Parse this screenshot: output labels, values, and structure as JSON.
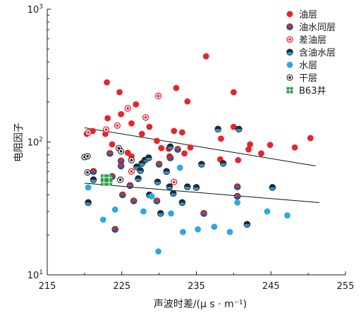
{
  "chart_data": {
    "type": "scatter",
    "xlabel": "声波时差/(μ s · m⁻¹)",
    "ylabel": "电阻因子",
    "xlim": [
      215,
      255
    ],
    "ylim": [
      10,
      1000
    ],
    "yscale": "log",
    "grid": false,
    "legend_position": "top-right",
    "xticks": [
      215,
      225,
      235,
      245,
      255
    ],
    "xtick_labels": [
      "215",
      "225",
      "235",
      "245",
      "255"
    ],
    "yticks": [
      10,
      100,
      1000
    ],
    "ytick_labels": [
      {
        "base": "10",
        "exp": "1"
      },
      {
        "base": "10",
        "exp": "2"
      },
      {
        "base": "10",
        "exp": "3"
      }
    ],
    "series": [
      {
        "name": "油层",
        "marker": "oil",
        "color": "#e8242b",
        "points": [
          [
            236.3,
            442
          ],
          [
            223.0,
            281
          ],
          [
            232.3,
            255
          ],
          [
            224.7,
            237
          ],
          [
            240.0,
            237
          ],
          [
            233.8,
            202
          ],
          [
            226.9,
            192
          ],
          [
            224.9,
            162
          ],
          [
            223.1,
            151
          ],
          [
            226.3,
            138
          ],
          [
            228.7,
            130
          ],
          [
            240.0,
            130
          ],
          [
            221.1,
            121
          ],
          [
            232.0,
            121
          ],
          [
            233.1,
            118
          ],
          [
            220.3,
            115
          ],
          [
            222.8,
            115
          ],
          [
            227.7,
            115
          ],
          [
            229.7,
            102
          ],
          [
            238.3,
            106
          ],
          [
            250.3,
            107
          ],
          [
            242.2,
            96
          ],
          [
            244.9,
            95
          ],
          [
            248.2,
            91
          ],
          [
            243.7,
            82
          ],
          [
            242.0,
            88
          ],
          [
            230.3,
            90
          ],
          [
            231.3,
            89
          ],
          [
            231.4,
            78
          ],
          [
            225.8,
            83
          ],
          [
            233.4,
            82
          ],
          [
            234.2,
            91
          ],
          [
            240.6,
            73
          ],
          [
            238.2,
            74
          ],
          [
            223.7,
            96
          ],
          [
            226.3,
            78
          ]
        ]
      },
      {
        "name": "油水同层",
        "marker": "oil-water",
        "color": "#e8242b",
        "color2": "#1f5fa8",
        "points": [
          [
            232.5,
            88
          ],
          [
            231.5,
            76
          ],
          [
            224.9,
            72
          ],
          [
            224.9,
            66
          ],
          [
            221.2,
            60
          ],
          [
            223.7,
            55
          ],
          [
            226.1,
            47
          ],
          [
            240.5,
            46
          ],
          [
            225.1,
            40
          ],
          [
            240.5,
            39
          ],
          [
            226.6,
            36
          ],
          [
            229.7,
            36
          ],
          [
            236.0,
            29
          ],
          [
            230.0,
            68
          ],
          [
            223.4,
            82
          ],
          [
            224.1,
            22
          ]
        ]
      },
      {
        "name": "差油层",
        "marker": "poor-oil",
        "color": "#e8242b",
        "points": [
          [
            229.9,
            222
          ],
          [
            228.2,
            153
          ],
          [
            225.8,
            179
          ],
          [
            224.4,
            133
          ],
          [
            220.5,
            118
          ],
          [
            222.9,
            124
          ],
          [
            232.0,
            50
          ],
          [
            226.3,
            60
          ]
        ]
      },
      {
        "name": "含油水层",
        "marker": "oily-water",
        "color": "#2996d5",
        "color2": "#1c2b3c",
        "points": [
          [
            237.9,
            125
          ],
          [
            240.7,
            125
          ],
          [
            231.5,
            92
          ],
          [
            228.1,
            73
          ],
          [
            227.7,
            69
          ],
          [
            227.0,
            65
          ],
          [
            227.5,
            61
          ],
          [
            228.6,
            76
          ],
          [
            235.7,
            68
          ],
          [
            238.6,
            69
          ],
          [
            231.0,
            60
          ],
          [
            223.3,
            51
          ],
          [
            221.2,
            52
          ],
          [
            227.2,
            53
          ],
          [
            229.8,
            50
          ],
          [
            231.4,
            46
          ],
          [
            233.8,
            46
          ],
          [
            235.0,
            45.5
          ],
          [
            245.2,
            45.5
          ],
          [
            231.9,
            41
          ],
          [
            228.7,
            40
          ],
          [
            233.1,
            35
          ],
          [
            220.5,
            35
          ],
          [
            230.2,
            29
          ],
          [
            241.8,
            24
          ]
        ]
      },
      {
        "name": "水层",
        "marker": "water",
        "color": "#29abe2",
        "points": [
          [
            220.5,
            45.5
          ],
          [
            232.8,
            64
          ],
          [
            229.0,
            39
          ],
          [
            240.5,
            35
          ],
          [
            227.9,
            30
          ],
          [
            224.1,
            31
          ],
          [
            231.6,
            29
          ],
          [
            222.5,
            26
          ],
          [
            244.5,
            30
          ],
          [
            247.2,
            28
          ],
          [
            237.4,
            23
          ],
          [
            235.2,
            22
          ],
          [
            233.2,
            21
          ],
          [
            239.5,
            21
          ],
          [
            229.9,
            15
          ]
        ]
      },
      {
        "name": "干层",
        "marker": "dry",
        "color": "#1a1a1a",
        "points": [
          [
            224.6,
            90
          ],
          [
            224.9,
            85
          ],
          [
            220.0,
            77
          ],
          [
            220.4,
            78
          ],
          [
            226.3,
            73
          ],
          [
            220.4,
            59
          ],
          [
            224.8,
            52
          ]
        ]
      },
      {
        "name": "B63井",
        "marker": "well-square",
        "color": "#2a9d4a",
        "points": [
          [
            222.6,
            54
          ],
          [
            223.3,
            54
          ],
          [
            222.6,
            49.5
          ],
          [
            223.3,
            49.5
          ]
        ]
      }
    ],
    "trendlines": [
      {
        "x": [
          220,
          251
        ],
        "y": [
          128,
          66
        ]
      },
      {
        "x": [
          220,
          251.5
        ],
        "y": [
          49,
          35
        ]
      }
    ]
  }
}
